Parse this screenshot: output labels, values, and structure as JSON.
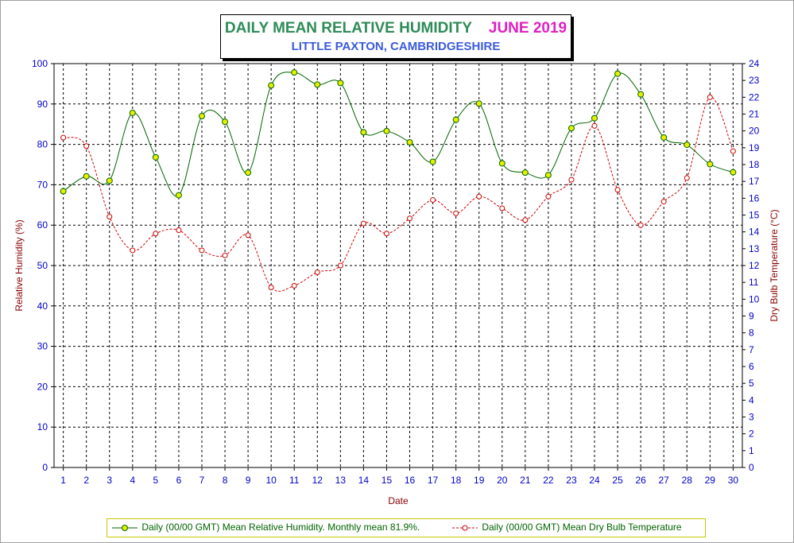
{
  "title": {
    "main": "DAILY MEAN RELATIVE HUMIDITY",
    "month": "JUNE 2019",
    "location": "LITTLE PAXTON, CAMBRIDGESHIRE"
  },
  "colors": {
    "rh_line": "#006400",
    "rh_marker": "#e8f000",
    "temp_line": "#cc0000",
    "left_axis_text": "#0000cc",
    "right_axis_text": "#0000cc",
    "left_axis_label": "#8b0000",
    "right_axis_label": "#8b0000"
  },
  "legend": {
    "rh": "Daily (00/00 GMT) Mean Relative Humidity. Monthly mean 81.9%.",
    "temp": "Daily (00/00 GMT) Mean Dry Bulb Temperature"
  },
  "chart_data": {
    "type": "line",
    "xlabel": "Date",
    "ylabel": "Relative Humidity (%)",
    "y2label": "Dry Bulb Temperature (°C)",
    "x": [
      1,
      2,
      3,
      4,
      5,
      6,
      7,
      8,
      9,
      10,
      11,
      12,
      13,
      14,
      15,
      16,
      17,
      18,
      19,
      20,
      21,
      22,
      23,
      24,
      25,
      26,
      27,
      28,
      29,
      30
    ],
    "xlim": [
      0.6,
      30.4
    ],
    "ylim": [
      0,
      100
    ],
    "y2lim": [
      0,
      24
    ],
    "yticks": [
      0,
      10,
      20,
      30,
      40,
      50,
      60,
      70,
      80,
      90,
      100
    ],
    "y2ticks": [
      0,
      1,
      2,
      3,
      4,
      5,
      6,
      7,
      8,
      9,
      10,
      11,
      12,
      13,
      14,
      15,
      16,
      17,
      18,
      19,
      20,
      21,
      22,
      23,
      24
    ],
    "grid": true,
    "legend_position": "bottom",
    "series": [
      {
        "name": "Daily (00/00 GMT) Mean Relative Humidity. Monthly mean 81.9%.",
        "axis": "left",
        "style": "solid-smooth",
        "values": [
          68.4,
          72.1,
          71.0,
          87.8,
          76.8,
          67.4,
          87.0,
          85.6,
          73.0,
          94.6,
          97.8,
          94.8,
          95.2,
          83.0,
          83.3,
          80.5,
          75.7,
          86.1,
          90.1,
          75.3,
          73.0,
          72.4,
          84.0,
          86.5,
          97.5,
          92.4,
          81.7,
          79.9,
          75.1,
          73.1
        ]
      },
      {
        "name": "Daily (00/00 GMT) Mean Dry Bulb Temperature",
        "axis": "right",
        "style": "dashed-smooth",
        "values": [
          19.6,
          19.1,
          14.9,
          12.9,
          13.9,
          14.1,
          12.9,
          12.6,
          13.8,
          10.7,
          10.8,
          11.6,
          12.0,
          14.5,
          13.9,
          14.8,
          15.9,
          15.1,
          16.1,
          15.4,
          14.7,
          16.1,
          17.1,
          20.3,
          16.5,
          14.4,
          15.8,
          17.2,
          22.0,
          18.8
        ]
      }
    ]
  }
}
